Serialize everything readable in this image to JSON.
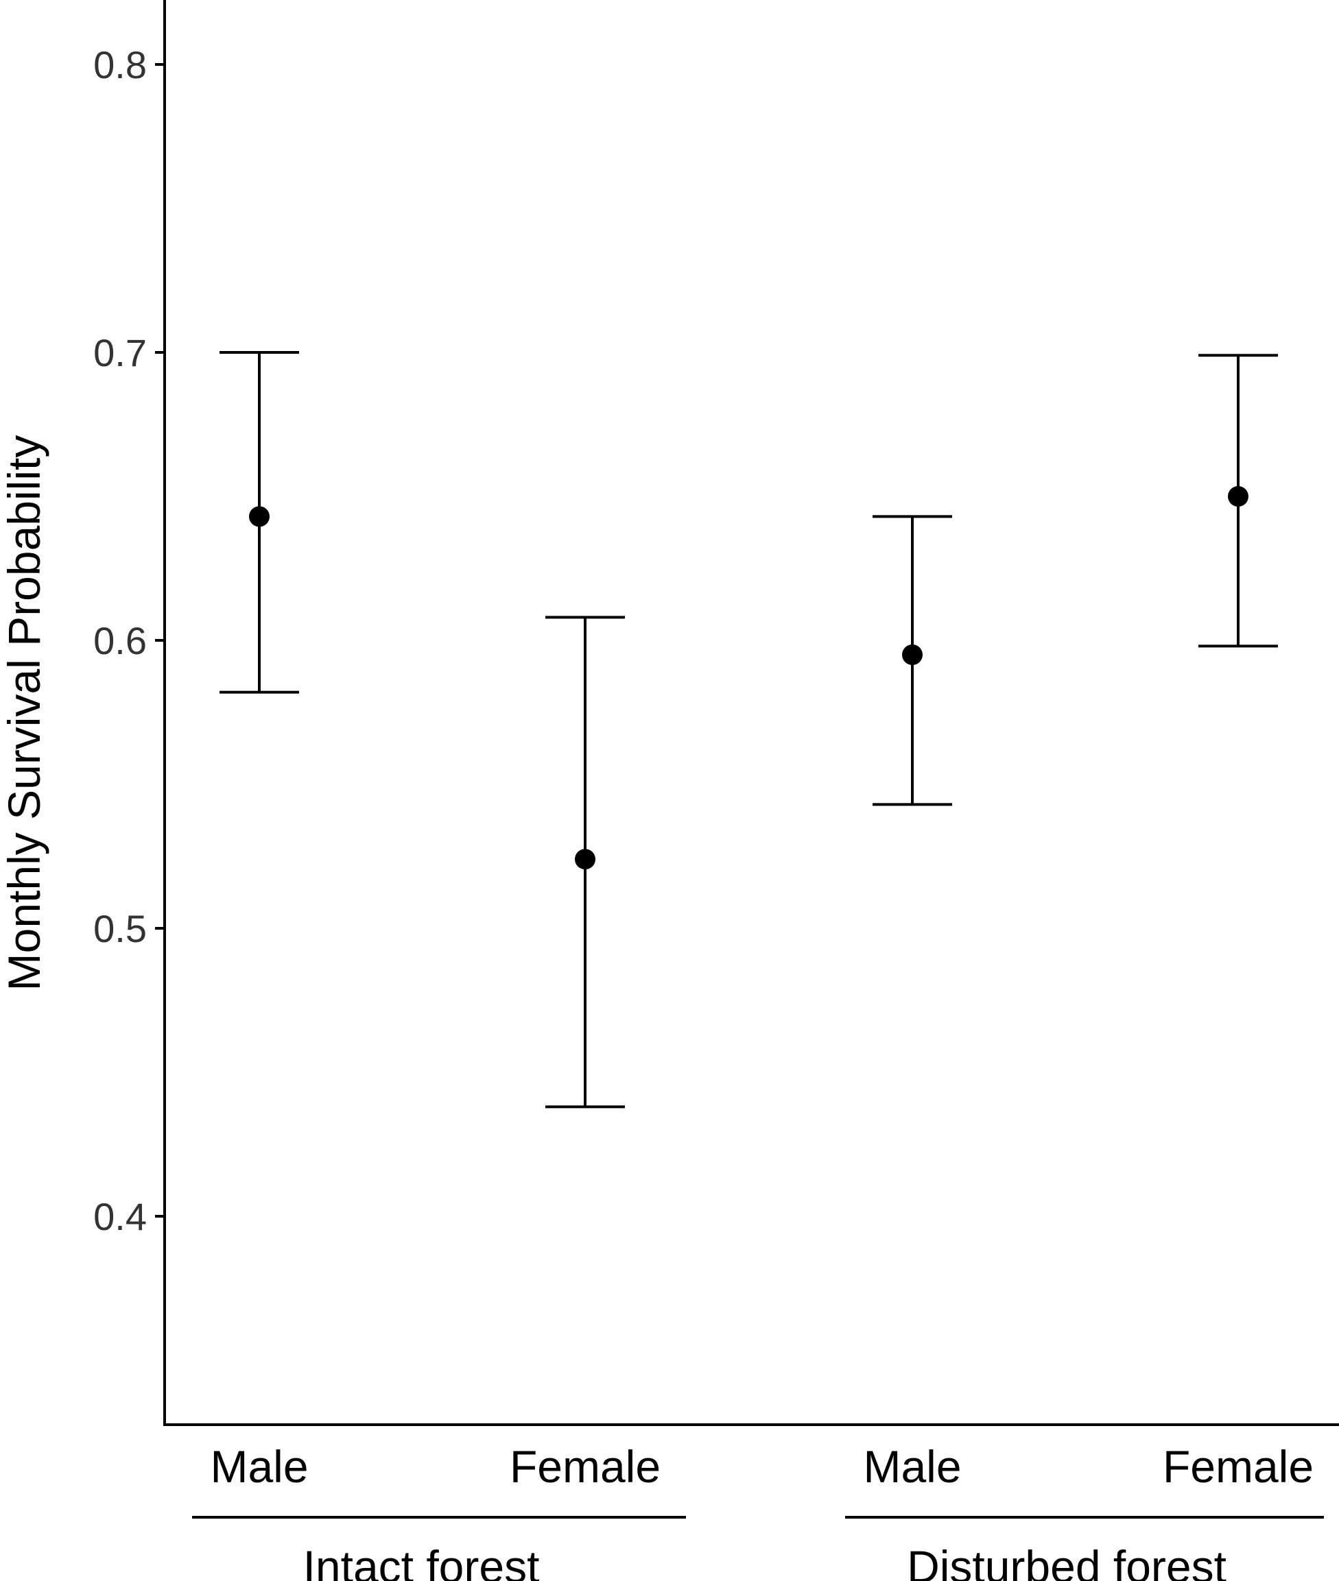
{
  "chart_data": {
    "type": "scatter",
    "ylabel": "Monthly Survival Probability",
    "ylim": [
      0.33,
      0.83
    ],
    "yticks": [
      0.4,
      0.5,
      0.6,
      0.7,
      0.8
    ],
    "ytick_labels": [
      "0.4",
      "0.5",
      "0.6",
      "0.7",
      "0.8"
    ],
    "categories": [
      "Male",
      "Female",
      "Male",
      "Female"
    ],
    "groups": [
      {
        "label": "Intact forest",
        "categories": [
          0,
          1
        ]
      },
      {
        "label": "Disturbed forest",
        "categories": [
          2,
          3
        ]
      }
    ],
    "points": [
      {
        "category": "Male",
        "group": "Intact forest",
        "estimate": 0.643,
        "lower": 0.582,
        "upper": 0.7
      },
      {
        "category": "Female",
        "group": "Intact forest",
        "estimate": 0.524,
        "lower": 0.438,
        "upper": 0.608
      },
      {
        "category": "Male",
        "group": "Disturbed forest",
        "estimate": 0.595,
        "lower": 0.543,
        "upper": 0.643
      },
      {
        "category": "Female",
        "group": "Disturbed forest",
        "estimate": 0.65,
        "lower": 0.598,
        "upper": 0.699
      }
    ],
    "grid": false,
    "marker_color": "#000000",
    "axis_color": "#000000",
    "tick_label_color": "#333333"
  }
}
